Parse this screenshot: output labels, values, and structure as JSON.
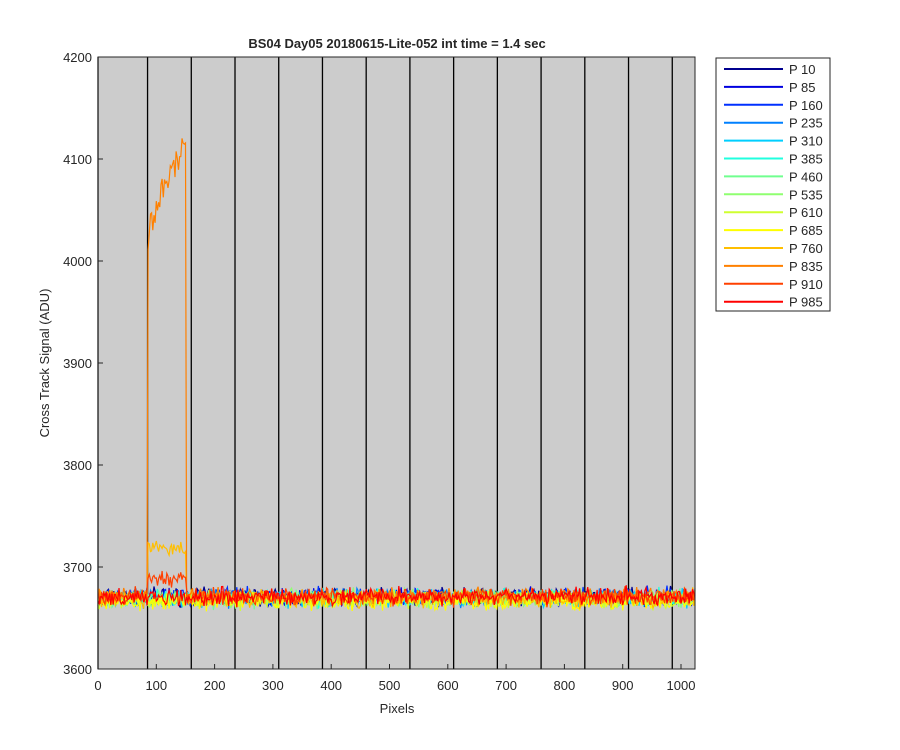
{
  "chart_data": {
    "type": "line",
    "title": "BS04 Day05 20180615-Lite-052 int time = 1.4 sec",
    "xlabel": "Pixels",
    "ylabel": "Cross Track Signal (ADU)",
    "xlim": [
      0,
      1024
    ],
    "ylim": [
      3600,
      4200
    ],
    "xticks": [
      0,
      100,
      200,
      300,
      400,
      500,
      600,
      700,
      800,
      900,
      1000
    ],
    "yticks": [
      3600,
      3700,
      3800,
      3900,
      4000,
      4100,
      4200
    ],
    "vertical_lines_x": [
      0,
      85,
      160,
      235,
      310,
      385,
      460,
      535,
      610,
      685,
      760,
      835,
      910,
      985
    ],
    "background_color": "#cccccc",
    "legend_position": "outside-right",
    "baseline_level": 3670,
    "baseline_noise": 12,
    "series": [
      {
        "name": "P 10",
        "color": "#00008f",
        "level": 3671
      },
      {
        "name": "P 85",
        "color": "#0000df",
        "level": 3670
      },
      {
        "name": "P 160",
        "color": "#0030ff",
        "level": 3671
      },
      {
        "name": "P 235",
        "color": "#0080ff",
        "level": 3670
      },
      {
        "name": "P 310",
        "color": "#00cfff",
        "level": 3669
      },
      {
        "name": "P 385",
        "color": "#20ffdf",
        "level": 3670
      },
      {
        "name": "P 460",
        "color": "#70ff8f",
        "level": 3669
      },
      {
        "name": "P 535",
        "color": "#8fff70",
        "level": 3670
      },
      {
        "name": "P 610",
        "color": "#cfff30",
        "level": 3668
      },
      {
        "name": "P 685",
        "color": "#ffff00",
        "level": 3666
      },
      {
        "name": "P 760",
        "color": "#ffbf00",
        "level": 3669,
        "bump": {
          "x": [
            85,
            150
          ],
          "level": 3718
        }
      },
      {
        "name": "P 835",
        "color": "#ff8000",
        "level": 3672,
        "bump": {
          "x": [
            85,
            150
          ],
          "start": 4030,
          "end": 4120
        }
      },
      {
        "name": "P 910",
        "color": "#ff4000",
        "level": 3671,
        "bump": {
          "x": [
            85,
            150
          ],
          "level": 3688
        }
      },
      {
        "name": "P 985",
        "color": "#ff0000",
        "level": 3671
      }
    ]
  }
}
